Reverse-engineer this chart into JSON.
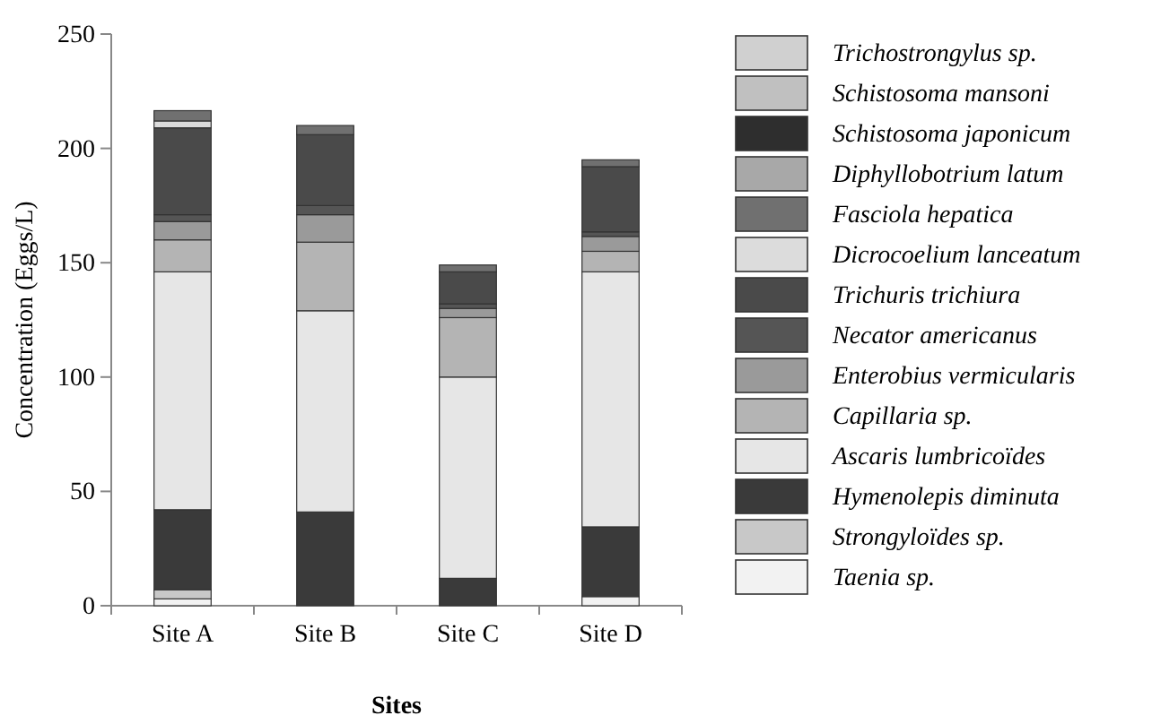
{
  "chart_data": {
    "type": "bar",
    "stacked": true,
    "xlabel": "Sites",
    "ylabel": "Concentration (Eggs/L)",
    "categories": [
      "Site A",
      "Site B",
      "Site C",
      "Site D"
    ],
    "ylim": [
      0,
      250
    ],
    "yticks": [
      0,
      50,
      100,
      150,
      200,
      250
    ],
    "grid": false,
    "legend": "right",
    "series": [
      {
        "name": "Taenia sp.",
        "color": "#f2f2f2",
        "values": [
          3,
          0,
          0,
          4
        ]
      },
      {
        "name": "Strongyloïdes sp.",
        "color": "#c8c8c8",
        "values": [
          4,
          0,
          0,
          0
        ]
      },
      {
        "name": "Hymenolepis diminuta",
        "color": "#3a3a3a",
        "values": [
          35,
          41,
          12,
          30.5
        ]
      },
      {
        "name": "Ascaris lumbricoïdes",
        "color": "#e6e6e6",
        "values": [
          104,
          88,
          88,
          111.5
        ]
      },
      {
        "name": "Capillaria sp.",
        "color": "#b4b4b4",
        "values": [
          14,
          30,
          26,
          9
        ]
      },
      {
        "name": "Enterobius vermicularis",
        "color": "#9a9a9a",
        "values": [
          8,
          12,
          4,
          6.5
        ]
      },
      {
        "name": "Necator americanus",
        "color": "#555555",
        "values": [
          3,
          4,
          2,
          2
        ]
      },
      {
        "name": "Trichuris trichiura",
        "color": "#4a4a4a",
        "values": [
          38,
          31,
          14,
          28.5
        ]
      },
      {
        "name": "Dicrocoelium lanceatum",
        "color": "#dcdcdc",
        "values": [
          3,
          0,
          0,
          0
        ]
      },
      {
        "name": "Fasciola hepatica",
        "color": "#707070",
        "values": [
          4.5,
          4,
          3,
          3
        ]
      },
      {
        "name": "Diphyllobotrium latum",
        "color": "#a8a8a8",
        "values": [
          0,
          0,
          0,
          0
        ]
      },
      {
        "name": "Schistosoma japonicum",
        "color": "#2e2e2e",
        "values": [
          0,
          0,
          0,
          0
        ]
      },
      {
        "name": "Schistosoma mansoni",
        "color": "#c0c0c0",
        "values": [
          0,
          0,
          0,
          0
        ]
      },
      {
        "name": "Trichostrongylus sp.",
        "color": "#d0d0d0",
        "values": [
          0,
          0,
          0,
          0
        ]
      }
    ]
  }
}
